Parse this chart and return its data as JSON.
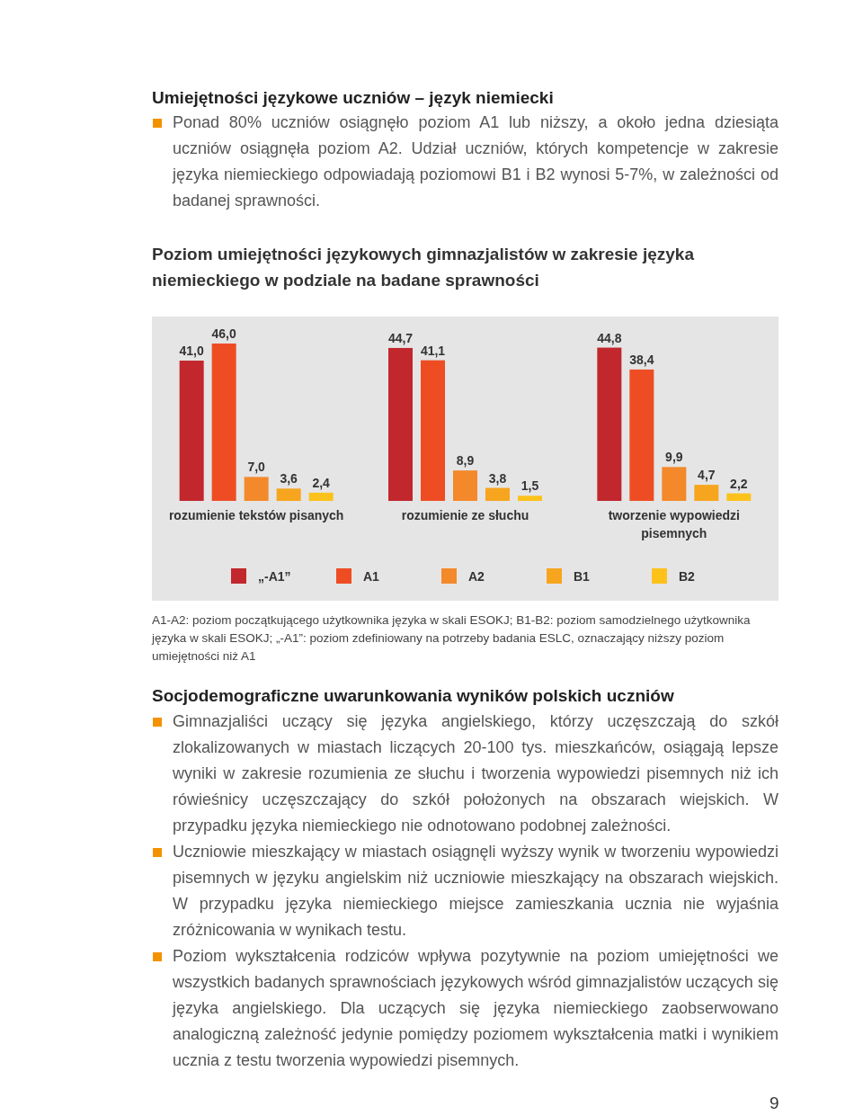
{
  "chart_data": {
    "type": "bar",
    "title": "Poziom umiejętności językowych gimnazjalistów w zakresie języka niemieckiego w podziale na badane sprawności",
    "categories": [
      "rozumienie tekstów pisanych",
      "rozumienie ze słuchu",
      "tworzenie wypowiedzi pisemnych"
    ],
    "series": [
      {
        "name": "„-A1”",
        "color": "#c1272d",
        "values": [
          41.0,
          44.7,
          44.8
        ],
        "value_labels": [
          "41,0",
          "44,7",
          "44,8"
        ]
      },
      {
        "name": "A1",
        "color": "#ee4d24",
        "values": [
          46.0,
          41.1,
          38.4
        ],
        "value_labels": [
          "46,0",
          "41,1",
          "38,4"
        ]
      },
      {
        "name": "A2",
        "color": "#f3892b",
        "values": [
          7.0,
          8.9,
          9.9
        ],
        "value_labels": [
          "7,0",
          "8,9",
          "9,9"
        ]
      },
      {
        "name": "B1",
        "color": "#f7a51f",
        "values": [
          3.6,
          3.8,
          4.7
        ],
        "value_labels": [
          "3,6",
          "3,8",
          "4,7"
        ]
      },
      {
        "name": "B2",
        "color": "#fcc21b",
        "values": [
          2.4,
          1.5,
          2.2
        ],
        "value_labels": [
          "2,4",
          "1,5",
          "2,2"
        ]
      }
    ],
    "legend": "bottom",
    "annotations": [
      "Umiejętności językowe uczniów – język niemiecki",
      "Ponad 80% uczniów osiągnęło poziom A1 lub niższy, a około jedna dziesiąta uczniów osiągnęła poziom A2. Udział uczniów, których kompetencje w zakresie języka niemieckiego odpowiadają poziomowi B1 i B2 wynosi 5-7%, w zależności od badanej sprawności.",
      "A1-A2: poziom początkującego użytkownika języka w skali ESOKJ; B1-B2: poziom samodzielnego użytkownika języka w skali ESOKJ; „-A1”: poziom zdefiniowany na potrzeby badania ESLC, oznaczający niższy poziom umiejętności niż A1",
      "Socjodemograficzne uwarunkowania wyników polskich uczniów",
      "Gimnazjaliści uczący się języka angielskiego, którzy uczęszczają do szkół zlokalizowanych w miastach liczących 20-100 tys. mieszkańców, osiągają lepsze wyniki w zakresie rozumienia ze słuchu i tworzenia wypowiedzi pisemnych niż ich rówieśnicy uczęszczający do szkół położonych na obszarach wiejskich. W przypadku języka niemieckiego nie odnotowano podobnej zależności.",
      "Uczniowie mieszkający w miastach osiągnęli wyższy wynik w tworzeniu wypowiedzi pisemnych w języku angielskim niż uczniowie mieszkający na obszarach wiejskich. W przypadku języka niemieckiego miejsce zamieszkania ucznia nie wyjaśnia zróżnicowania w wynikach testu.",
      "Poziom wykształcenia rodziców wpływa pozytywnie na poziom umiejętności we wszystkich badanych sprawnościach językowych wśród gimnazjalistów uczących się języka angielskiego. Dla uczących się języka niemieckiego zaobserwowano analogiczną zależność jedynie pomiędzy poziomem wykształcenia matki i wynikiem ucznia z testu tworzenia wypowiedzi pisemnych.",
      "9"
    ]
  }
}
